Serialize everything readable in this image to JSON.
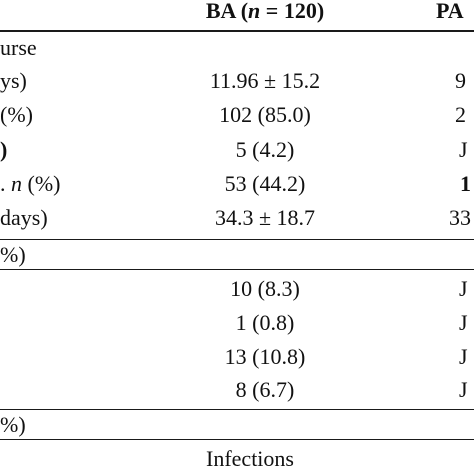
{
  "header": {
    "col_ba_prefix": "BA (",
    "col_ba_n": "n",
    "col_ba_suffix": " = 120)",
    "col_pa": "PA"
  },
  "sections": {
    "course": "urse",
    "pct_section_1": "%)",
    "pct_section_2": "%)",
    "infections": "Infections"
  },
  "rows": [
    {
      "label": "ys)",
      "ba": "11.96 ± 15.2",
      "pa": "9"
    },
    {
      "label": " (%)",
      "ba": "102 (85.0)",
      "pa": "2"
    },
    {
      "label": ")",
      "ba": "5 (4.2)",
      "pa": "J"
    },
    {
      "label_prefix": ". ",
      "label_n": "n",
      "label_suffix": " (%)",
      "ba": "53 (44.2)",
      "pa": "1"
    },
    {
      "label": "days)",
      "ba": "34.3 ± 18.7",
      "pa": "33"
    },
    {
      "ba": "10 (8.3)",
      "pa": "J"
    },
    {
      "ba": "1 (0.8)",
      "pa": "J"
    },
    {
      "ba": "13 (10.8)",
      "pa": "J"
    },
    {
      "ba": "8 (6.7)",
      "pa": "J"
    }
  ]
}
